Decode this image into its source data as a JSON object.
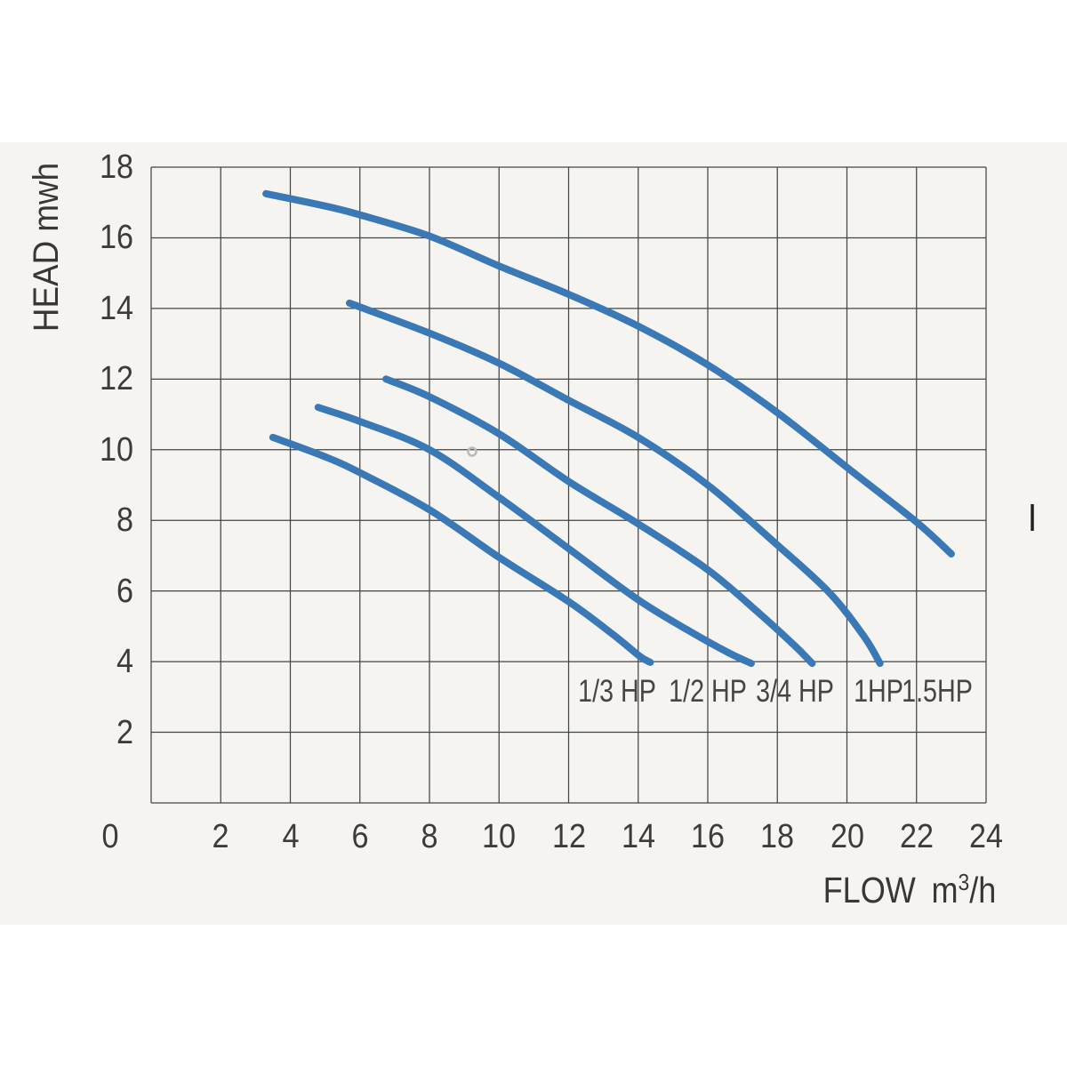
{
  "figure": {
    "background": "#ffffff",
    "panel_background": "#f5f4f1",
    "grid_color": "#454545",
    "text_color": "#3c3b38",
    "curve_color": "#3b79b6"
  },
  "chart_data": {
    "type": "line",
    "title": "",
    "xlabel": "FLOW m³/h",
    "xlabel_parts": {
      "word": "FLOW",
      "unit_base": "m",
      "unit_sup": "3",
      "unit_suffix": "/h"
    },
    "ylabel": "HEAD mwh",
    "xlim": [
      0,
      24
    ],
    "ylim": [
      0,
      18
    ],
    "grid": true,
    "grid_step": 2,
    "x_ticks": [
      2,
      4,
      6,
      8,
      10,
      12,
      14,
      16,
      18,
      20,
      22,
      24
    ],
    "y_ticks": [
      18,
      16,
      14,
      12,
      10,
      8,
      6,
      4,
      2
    ],
    "origin_tick": "0",
    "legend_position": "labels-below-curve-ends",
    "series": [
      {
        "name": "1/3 HP",
        "label_at": {
          "flow": 13.4,
          "head": 3.15
        },
        "points": [
          [
            3.5,
            10.35
          ],
          [
            5,
            9.8
          ],
          [
            6,
            9.35
          ],
          [
            8,
            8.3
          ],
          [
            10,
            6.95
          ],
          [
            12,
            5.7
          ],
          [
            13.3,
            4.75
          ],
          [
            14.05,
            4.15
          ],
          [
            14.35,
            3.98
          ]
        ]
      },
      {
        "name": "1/2 HP",
        "label_at": {
          "flow": 16.0,
          "head": 3.15
        },
        "points": [
          [
            4.8,
            11.2
          ],
          [
            6,
            10.8
          ],
          [
            8,
            10.0
          ],
          [
            10,
            8.65
          ],
          [
            12,
            7.2
          ],
          [
            14,
            5.75
          ],
          [
            15.5,
            4.85
          ],
          [
            16.6,
            4.25
          ],
          [
            17.25,
            3.95
          ]
        ]
      },
      {
        "name": "3/4 HP",
        "label_at": {
          "flow": 18.5,
          "head": 3.15
        },
        "points": [
          [
            6.75,
            12.0
          ],
          [
            8,
            11.5
          ],
          [
            10,
            10.45
          ],
          [
            12,
            9.1
          ],
          [
            14,
            7.9
          ],
          [
            16,
            6.6
          ],
          [
            17.5,
            5.35
          ],
          [
            18.5,
            4.45
          ],
          [
            19.0,
            3.95
          ]
        ]
      },
      {
        "name": "1HP",
        "label_at": {
          "flow": 20.9,
          "head": 3.15
        },
        "points": [
          [
            5.7,
            14.15
          ],
          [
            8,
            13.3
          ],
          [
            10,
            12.45
          ],
          [
            12,
            11.4
          ],
          [
            14,
            10.35
          ],
          [
            16,
            9.0
          ],
          [
            18,
            7.3
          ],
          [
            19.5,
            5.95
          ],
          [
            20.5,
            4.7
          ],
          [
            20.95,
            3.95
          ]
        ]
      },
      {
        "name": "1.5HP",
        "label_at": {
          "flow": 22.6,
          "head": 3.15
        },
        "points": [
          [
            3.3,
            17.25
          ],
          [
            5,
            16.9
          ],
          [
            6,
            16.65
          ],
          [
            8,
            16.05
          ],
          [
            10,
            15.2
          ],
          [
            12,
            14.4
          ],
          [
            14,
            13.5
          ],
          [
            16,
            12.4
          ],
          [
            18,
            11.05
          ],
          [
            20,
            9.5
          ],
          [
            22,
            7.95
          ],
          [
            23,
            7.05
          ]
        ]
      }
    ]
  },
  "artifacts": {
    "stray_dash": "short vertical print mark at right edge of plot",
    "smudge_dot": "faint small circle near flow 9.2, head 10"
  }
}
